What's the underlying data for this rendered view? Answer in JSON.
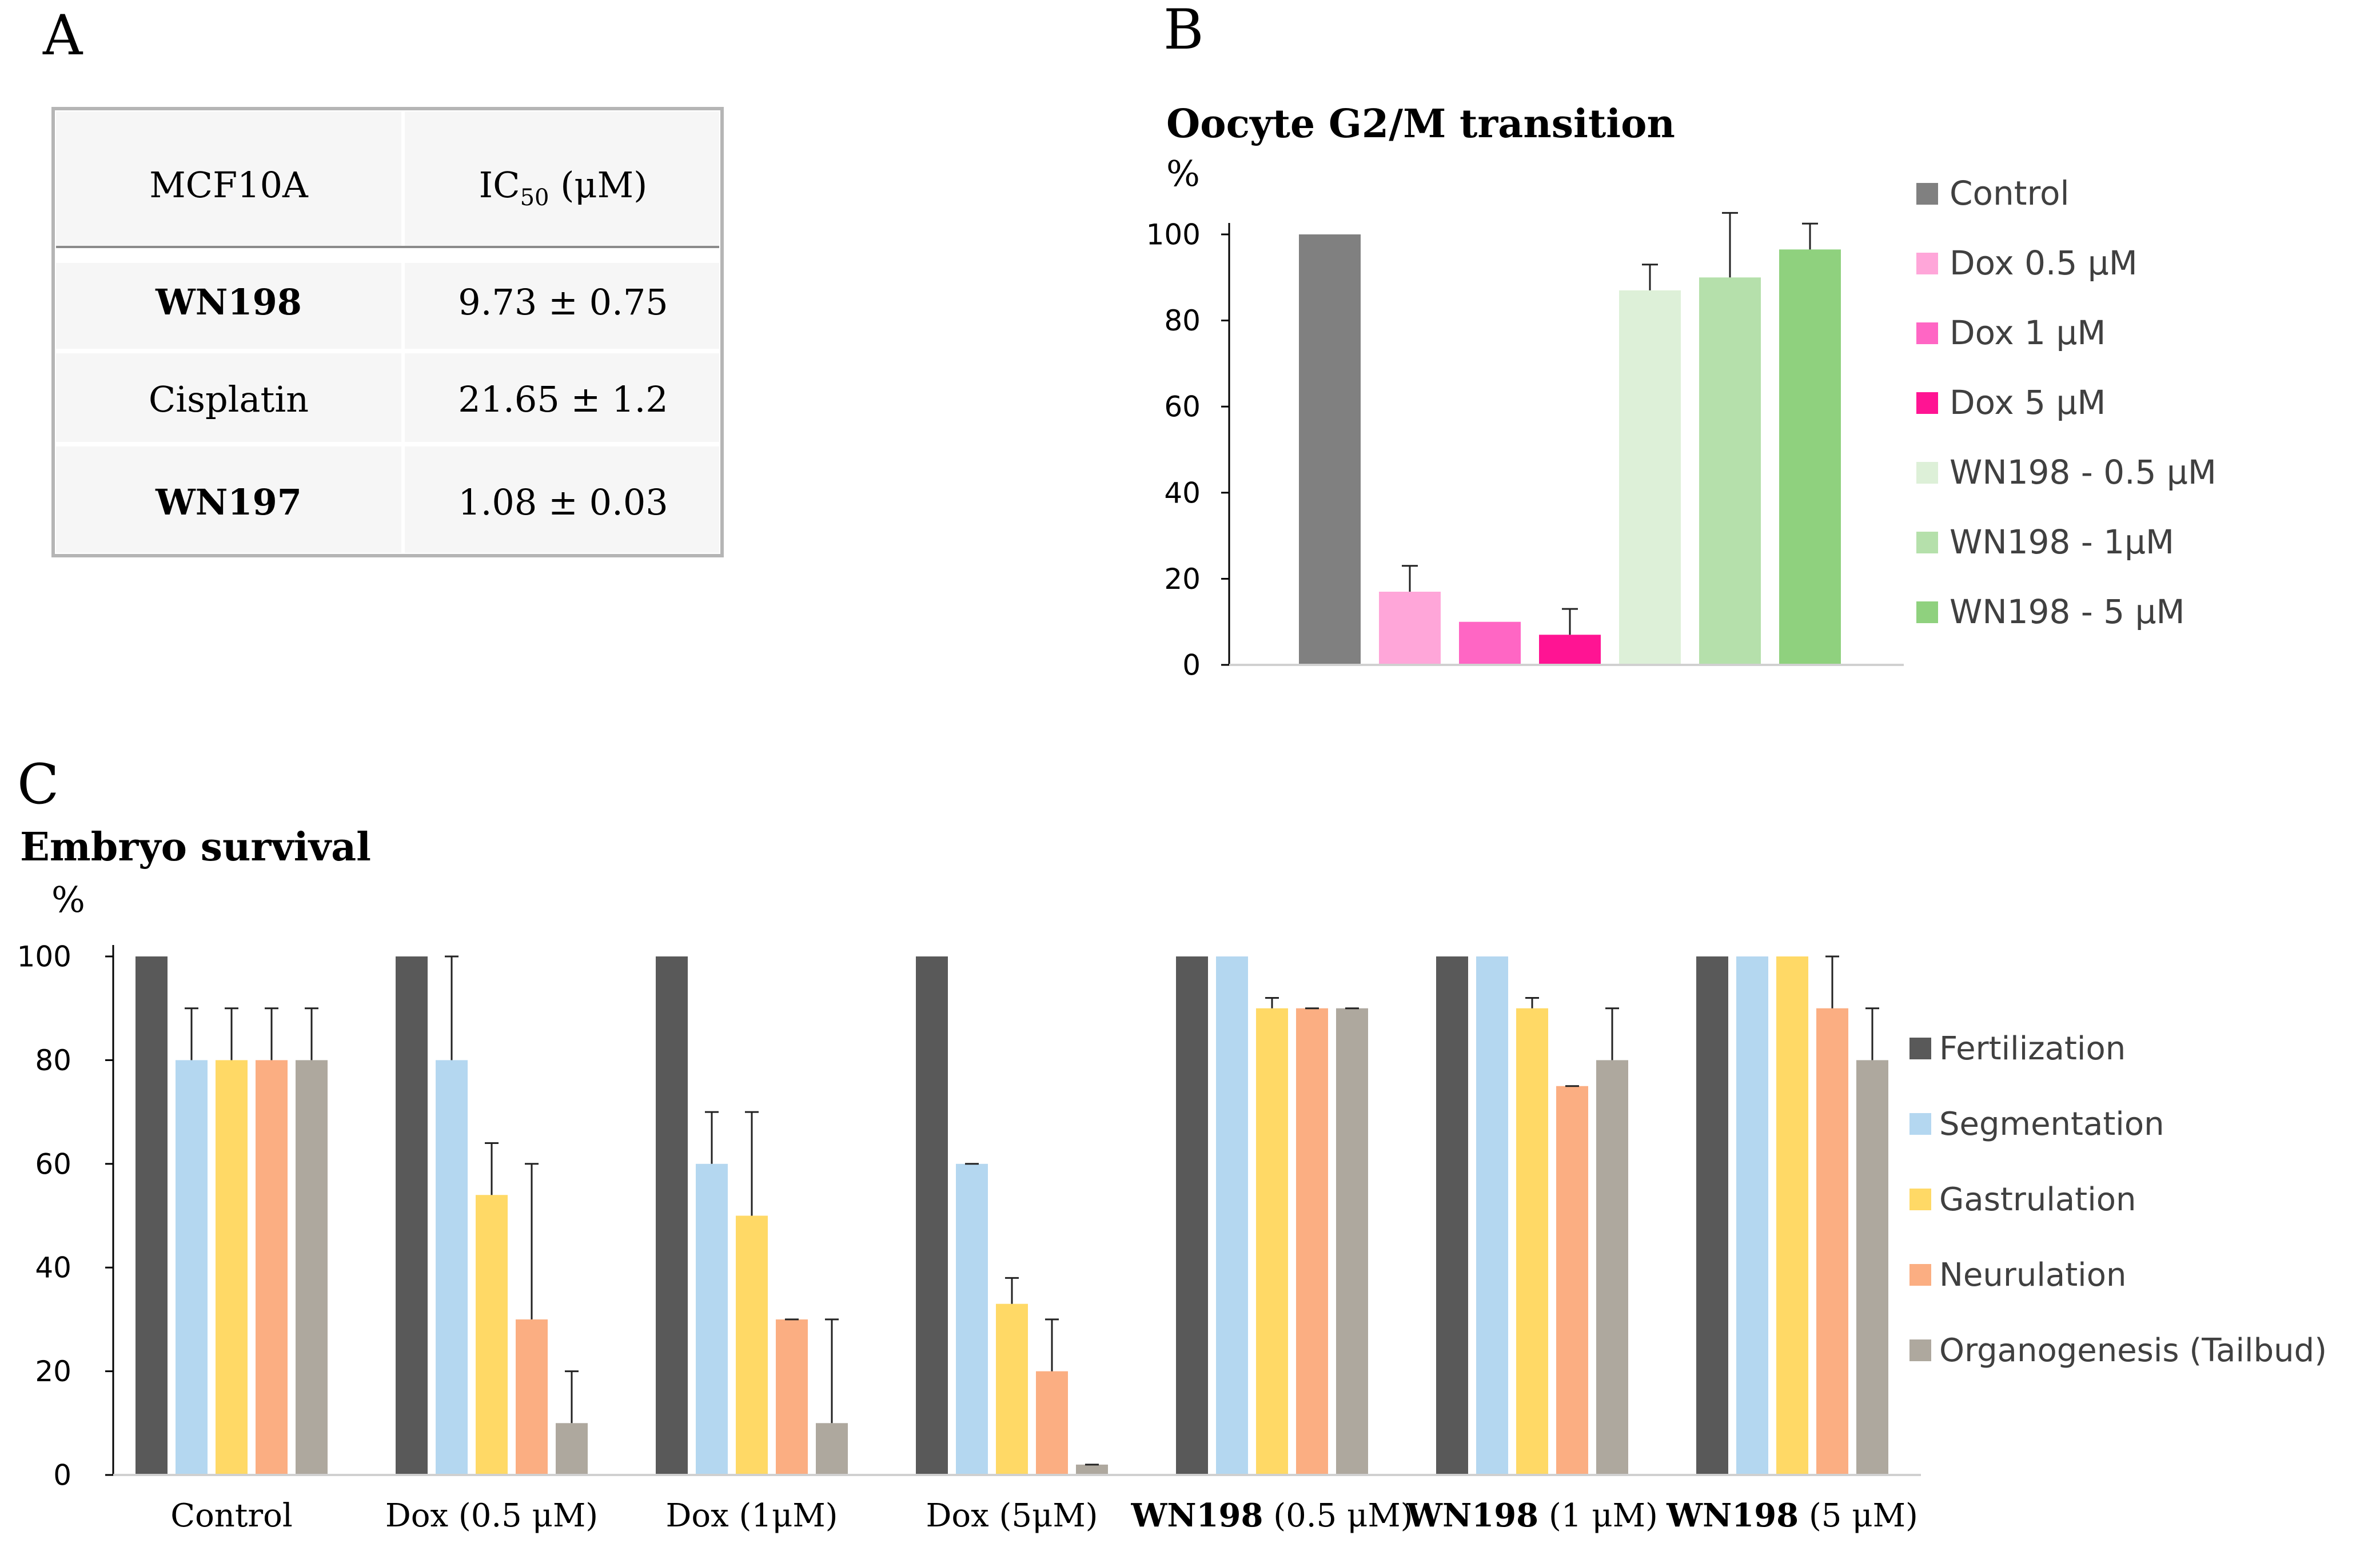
{
  "panel_a": {
    "letter": "A",
    "headers": {
      "col1": "MCF10A",
      "col2_main": "IC",
      "col2_sub": "50",
      "col2_unit": " (μM)"
    },
    "rows": [
      {
        "name": "WN198",
        "value": "9.73 ± 0.75",
        "bold": true
      },
      {
        "name": "Cisplatin",
        "value": "21.65 ± 1.2",
        "bold": false
      },
      {
        "name": "WN197",
        "value": "1.08 ± 0.03",
        "bold": true
      }
    ]
  },
  "panel_b": {
    "letter": "B"
  },
  "panel_c": {
    "letter": "C"
  },
  "chart_data": [
    {
      "id": "oocyte",
      "type": "bar",
      "title": "Oocyte G2/M transition",
      "ylabel": "%",
      "ylim": [
        0,
        100
      ],
      "yticks": [
        0,
        20,
        40,
        60,
        80,
        100
      ],
      "legend_position": "right",
      "series": [
        {
          "name": "Control",
          "value": 100,
          "error": 0,
          "color": "#808080"
        },
        {
          "name": "Dox 0.5 μM",
          "value": 17,
          "error": 6,
          "color": "#FFA6D9"
        },
        {
          "name": "Dox 1 μM",
          "value": 10,
          "error": 0,
          "color": "#FF66C4"
        },
        {
          "name": "Dox 5 μM",
          "value": 7,
          "error": 6,
          "color": "#FF1493"
        },
        {
          "name": "WN198 - 0.5 μM",
          "value": 87,
          "error": 6,
          "color": "#DDF0D8"
        },
        {
          "name": "WN198 - 1μM",
          "value": 90,
          "error": 15,
          "color": "#B5E0AB"
        },
        {
          "name": "WN198 - 5 μM",
          "value": 96.5,
          "error": 6,
          "color": "#8FD17E"
        }
      ]
    },
    {
      "id": "embryo",
      "type": "bar",
      "title": "Embryo survival",
      "ylabel": "%",
      "ylim": [
        0,
        100
      ],
      "yticks": [
        0,
        20,
        40,
        60,
        80,
        100
      ],
      "legend_position": "right",
      "categories": [
        {
          "bold": "",
          "text": "Control"
        },
        {
          "bold": "",
          "text": "Dox  (0.5 μM)"
        },
        {
          "bold": "",
          "text": "Dox (1μM)"
        },
        {
          "bold": "",
          "text": "Dox (5μM)"
        },
        {
          "bold": "WN198",
          "text": " (0.5 μM)"
        },
        {
          "bold": "WN198",
          "text": " (1 μM)"
        },
        {
          "bold": "WN198",
          "text": "  (5 μM)"
        }
      ],
      "series": [
        {
          "name": "Fertilization",
          "color": "#595959",
          "values": [
            100,
            100,
            100,
            100,
            100,
            100,
            100
          ],
          "errors": [
            0,
            0,
            0,
            0,
            0,
            0,
            0
          ]
        },
        {
          "name": "Segmentation",
          "color": "#B4D7F0",
          "values": [
            80,
            80,
            60,
            60,
            100,
            100,
            100
          ],
          "errors": [
            10,
            20,
            10,
            0,
            0,
            0,
            0
          ]
        },
        {
          "name": "Gastrulation",
          "color": "#FFD966",
          "values": [
            80,
            54,
            50,
            33,
            90,
            90,
            100
          ],
          "errors": [
            10,
            10,
            20,
            5,
            2,
            2,
            0
          ]
        },
        {
          "name": "Neurulation",
          "color": "#FBAE82",
          "values": [
            80,
            30,
            30,
            20,
            90,
            75,
            90
          ],
          "errors": [
            10,
            30,
            0,
            10,
            0,
            0,
            10
          ]
        },
        {
          "name": "Organogenesis (Tailbud)",
          "color": "#AEA89E",
          "values": [
            80,
            10,
            10,
            2,
            90,
            80,
            80
          ],
          "errors": [
            10,
            10,
            20,
            0,
            0,
            10,
            10
          ]
        }
      ]
    }
  ]
}
